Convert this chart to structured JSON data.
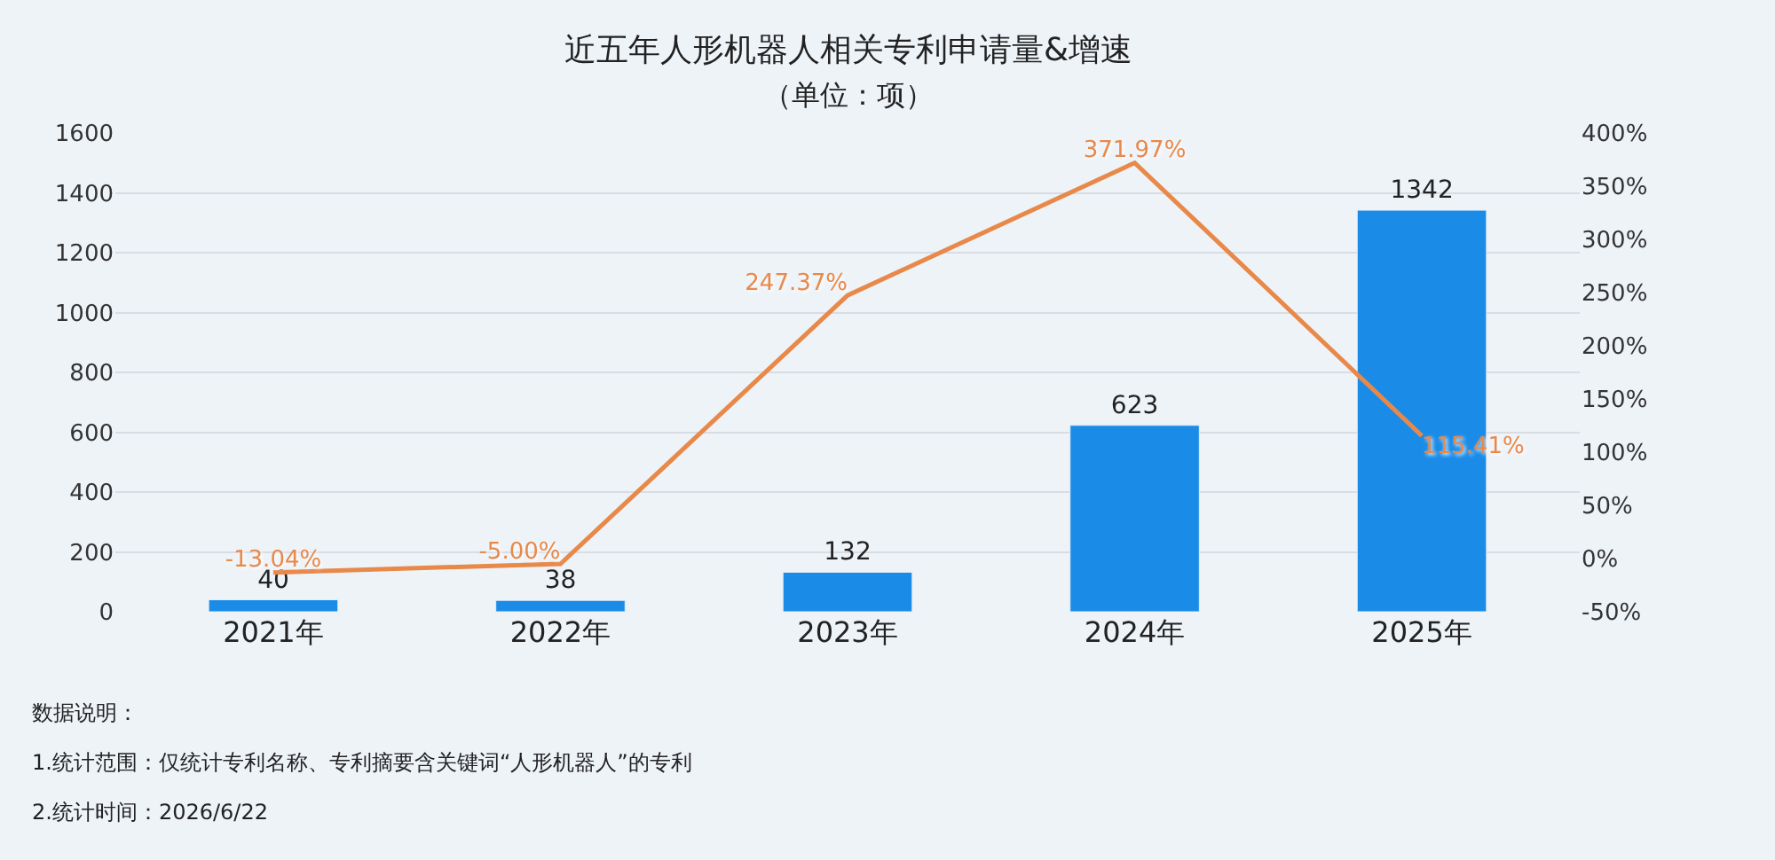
{
  "chart_data": {
    "type": "bar",
    "title": "近五年人形机器人相关专利申请量&增速",
    "subtitle": "（单位：项）",
    "categories": [
      "2021年",
      "2022年",
      "2023年",
      "2024年",
      "2025年"
    ],
    "series": [
      {
        "color": "#1a8ce8",
        "values": [
          40,
          38,
          132,
          623,
          1342
        ],
        "value_labels": [
          "40",
          "38",
          "132",
          "623",
          "1342"
        ]
      },
      {
        "type": "line",
        "axis": "y2",
        "color": "#e8894a",
        "values": [
          -13.04,
          -5.0,
          247.37,
          371.97,
          115.41
        ],
        "value_labels": [
          "-13.04%",
          "-5.00%",
          "247.37%",
          "371.97%",
          "115.41%"
        ]
      }
    ],
    "ylim": [
      0,
      1600
    ],
    "yticks": [
      0,
      200,
      400,
      600,
      800,
      1000,
      1200,
      1400,
      1600
    ],
    "y2lim": [
      -50,
      400
    ],
    "y2ticks": [
      {
        "value": -50,
        "label": "-50%"
      },
      {
        "value": 0,
        "label": "0%"
      },
      {
        "value": 50,
        "label": "50%"
      },
      {
        "value": 100,
        "label": "100%"
      },
      {
        "value": 150,
        "label": "150%"
      },
      {
        "value": 200,
        "label": "200%"
      },
      {
        "value": 250,
        "label": "250%"
      },
      {
        "value": 300,
        "label": "300%"
      },
      {
        "value": 350,
        "label": "350%"
      },
      {
        "value": 400,
        "label": "400%"
      }
    ],
    "grid": "y",
    "marker": "none",
    "line_style": "solid",
    "annotations": [
      "数据说明：",
      "1.统计范围：仅统计专利名称、专利摘要含关键词“人形机器人”的专利",
      "2.统计时间：2026/6/22"
    ]
  }
}
